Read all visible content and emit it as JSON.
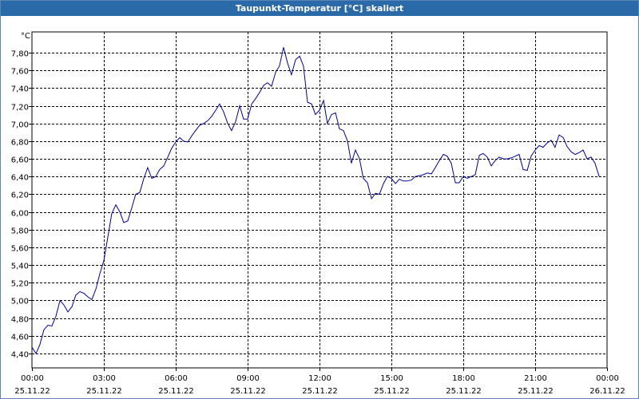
{
  "window": {
    "title": "Taupunkt-Temperatur [°C] skaliert"
  },
  "colors": {
    "titlebar": "#2b6aa8",
    "line": "#0000a0",
    "grid": "#000000",
    "border": "#5a86b4"
  },
  "chart_data": {
    "type": "line",
    "title": "Taupunkt-Temperatur [°C] skaliert",
    "ylabel": "°C",
    "xlabel": "",
    "ylim": [
      4.3,
      8.0
    ],
    "xlim_hours": [
      0,
      24
    ],
    "grid": true,
    "y_ticks": [
      "4,40",
      "4,60",
      "4,80",
      "5,00",
      "5,20",
      "5,40",
      "5,60",
      "5,80",
      "6,00",
      "6,20",
      "6,40",
      "6,60",
      "6,80",
      "7,00",
      "7,20",
      "7,40",
      "7,60",
      "7,80"
    ],
    "x_ticks": [
      {
        "time": "00:00",
        "date": "25.11.22"
      },
      {
        "time": "03:00",
        "date": "25.11.22"
      },
      {
        "time": "06:00",
        "date": "25.11.22"
      },
      {
        "time": "09:00",
        "date": "25.11.22"
      },
      {
        "time": "12:00",
        "date": "25.11.22"
      },
      {
        "time": "15:00",
        "date": "25.11.22"
      },
      {
        "time": "18:00",
        "date": "25.11.22"
      },
      {
        "time": "21:00",
        "date": "25.11.22"
      },
      {
        "time": "00:00",
        "date": "26.11.22"
      }
    ],
    "series": [
      {
        "points": [
          [
            0.0,
            4.47
          ],
          [
            0.17,
            4.4
          ],
          [
            0.33,
            4.5
          ],
          [
            0.5,
            4.67
          ],
          [
            0.67,
            4.72
          ],
          [
            0.83,
            4.71
          ],
          [
            1.0,
            4.82
          ],
          [
            1.17,
            5.0
          ],
          [
            1.33,
            4.95
          ],
          [
            1.5,
            4.87
          ],
          [
            1.67,
            4.93
          ],
          [
            1.83,
            5.06
          ],
          [
            2.0,
            5.1
          ],
          [
            2.17,
            5.08
          ],
          [
            2.33,
            5.04
          ],
          [
            2.5,
            5.01
          ],
          [
            2.67,
            5.13
          ],
          [
            2.83,
            5.3
          ],
          [
            3.0,
            5.45
          ],
          [
            3.17,
            5.72
          ],
          [
            3.33,
            5.98
          ],
          [
            3.5,
            6.08
          ],
          [
            3.67,
            6.0
          ],
          [
            3.83,
            5.88
          ],
          [
            4.0,
            5.9
          ],
          [
            4.17,
            6.05
          ],
          [
            4.33,
            6.2
          ],
          [
            4.5,
            6.22
          ],
          [
            4.67,
            6.38
          ],
          [
            4.83,
            6.5
          ],
          [
            5.0,
            6.38
          ],
          [
            5.17,
            6.4
          ],
          [
            5.33,
            6.48
          ],
          [
            5.5,
            6.52
          ],
          [
            5.67,
            6.62
          ],
          [
            5.83,
            6.72
          ],
          [
            6.0,
            6.79
          ],
          [
            6.17,
            6.84
          ],
          [
            6.33,
            6.8
          ],
          [
            6.5,
            6.79
          ],
          [
            6.67,
            6.86
          ],
          [
            6.83,
            6.92
          ],
          [
            7.0,
            6.98
          ],
          [
            7.17,
            7.0
          ],
          [
            7.33,
            7.03
          ],
          [
            7.5,
            7.08
          ],
          [
            7.67,
            7.15
          ],
          [
            7.83,
            7.22
          ],
          [
            8.0,
            7.13
          ],
          [
            8.17,
            7.0
          ],
          [
            8.33,
            6.92
          ],
          [
            8.5,
            7.02
          ],
          [
            8.67,
            7.2
          ],
          [
            8.83,
            7.05
          ],
          [
            9.0,
            7.05
          ],
          [
            9.17,
            7.22
          ],
          [
            9.33,
            7.28
          ],
          [
            9.5,
            7.35
          ],
          [
            9.67,
            7.43
          ],
          [
            9.83,
            7.46
          ],
          [
            10.0,
            7.42
          ],
          [
            10.17,
            7.58
          ],
          [
            10.33,
            7.65
          ],
          [
            10.5,
            7.86
          ],
          [
            10.67,
            7.68
          ],
          [
            10.83,
            7.55
          ],
          [
            11.0,
            7.72
          ],
          [
            11.17,
            7.76
          ],
          [
            11.33,
            7.65
          ],
          [
            11.5,
            7.24
          ],
          [
            11.67,
            7.22
          ],
          [
            11.83,
            7.1
          ],
          [
            12.0,
            7.15
          ],
          [
            12.17,
            7.26
          ],
          [
            12.33,
            7.0
          ],
          [
            12.5,
            7.1
          ],
          [
            12.67,
            7.12
          ],
          [
            12.83,
            6.94
          ],
          [
            13.0,
            6.92
          ],
          [
            13.17,
            6.8
          ],
          [
            13.33,
            6.55
          ],
          [
            13.5,
            6.7
          ],
          [
            13.67,
            6.6
          ],
          [
            13.83,
            6.38
          ],
          [
            14.0,
            6.33
          ],
          [
            14.17,
            6.15
          ],
          [
            14.33,
            6.21
          ],
          [
            14.5,
            6.2
          ],
          [
            14.67,
            6.32
          ],
          [
            14.83,
            6.4
          ],
          [
            15.0,
            6.38
          ],
          [
            15.17,
            6.32
          ],
          [
            15.33,
            6.37
          ],
          [
            15.5,
            6.35
          ],
          [
            15.67,
            6.35
          ],
          [
            15.83,
            6.36
          ],
          [
            16.0,
            6.4
          ],
          [
            16.17,
            6.41
          ],
          [
            16.33,
            6.42
          ],
          [
            16.5,
            6.44
          ],
          [
            16.67,
            6.43
          ],
          [
            16.83,
            6.5
          ],
          [
            17.0,
            6.58
          ],
          [
            17.17,
            6.65
          ],
          [
            17.33,
            6.63
          ],
          [
            17.5,
            6.55
          ],
          [
            17.67,
            6.33
          ],
          [
            17.83,
            6.33
          ],
          [
            18.0,
            6.4
          ],
          [
            18.17,
            6.38
          ],
          [
            18.33,
            6.4
          ],
          [
            18.5,
            6.42
          ],
          [
            18.67,
            6.64
          ],
          [
            18.83,
            6.66
          ],
          [
            19.0,
            6.62
          ],
          [
            19.17,
            6.52
          ],
          [
            19.33,
            6.58
          ],
          [
            19.5,
            6.62
          ],
          [
            19.67,
            6.6
          ],
          [
            19.83,
            6.6
          ],
          [
            20.0,
            6.61
          ],
          [
            20.17,
            6.63
          ],
          [
            20.33,
            6.65
          ],
          [
            20.5,
            6.48
          ],
          [
            20.67,
            6.47
          ],
          [
            20.83,
            6.63
          ],
          [
            21.0,
            6.7
          ],
          [
            21.17,
            6.75
          ],
          [
            21.33,
            6.73
          ],
          [
            21.5,
            6.78
          ],
          [
            21.67,
            6.81
          ],
          [
            21.83,
            6.73
          ],
          [
            22.0,
            6.87
          ],
          [
            22.17,
            6.84
          ],
          [
            22.33,
            6.74
          ],
          [
            22.5,
            6.68
          ],
          [
            22.67,
            6.65
          ],
          [
            22.83,
            6.67
          ],
          [
            23.0,
            6.7
          ],
          [
            23.17,
            6.6
          ],
          [
            23.33,
            6.62
          ],
          [
            23.5,
            6.55
          ],
          [
            23.67,
            6.4
          ]
        ]
      }
    ]
  }
}
